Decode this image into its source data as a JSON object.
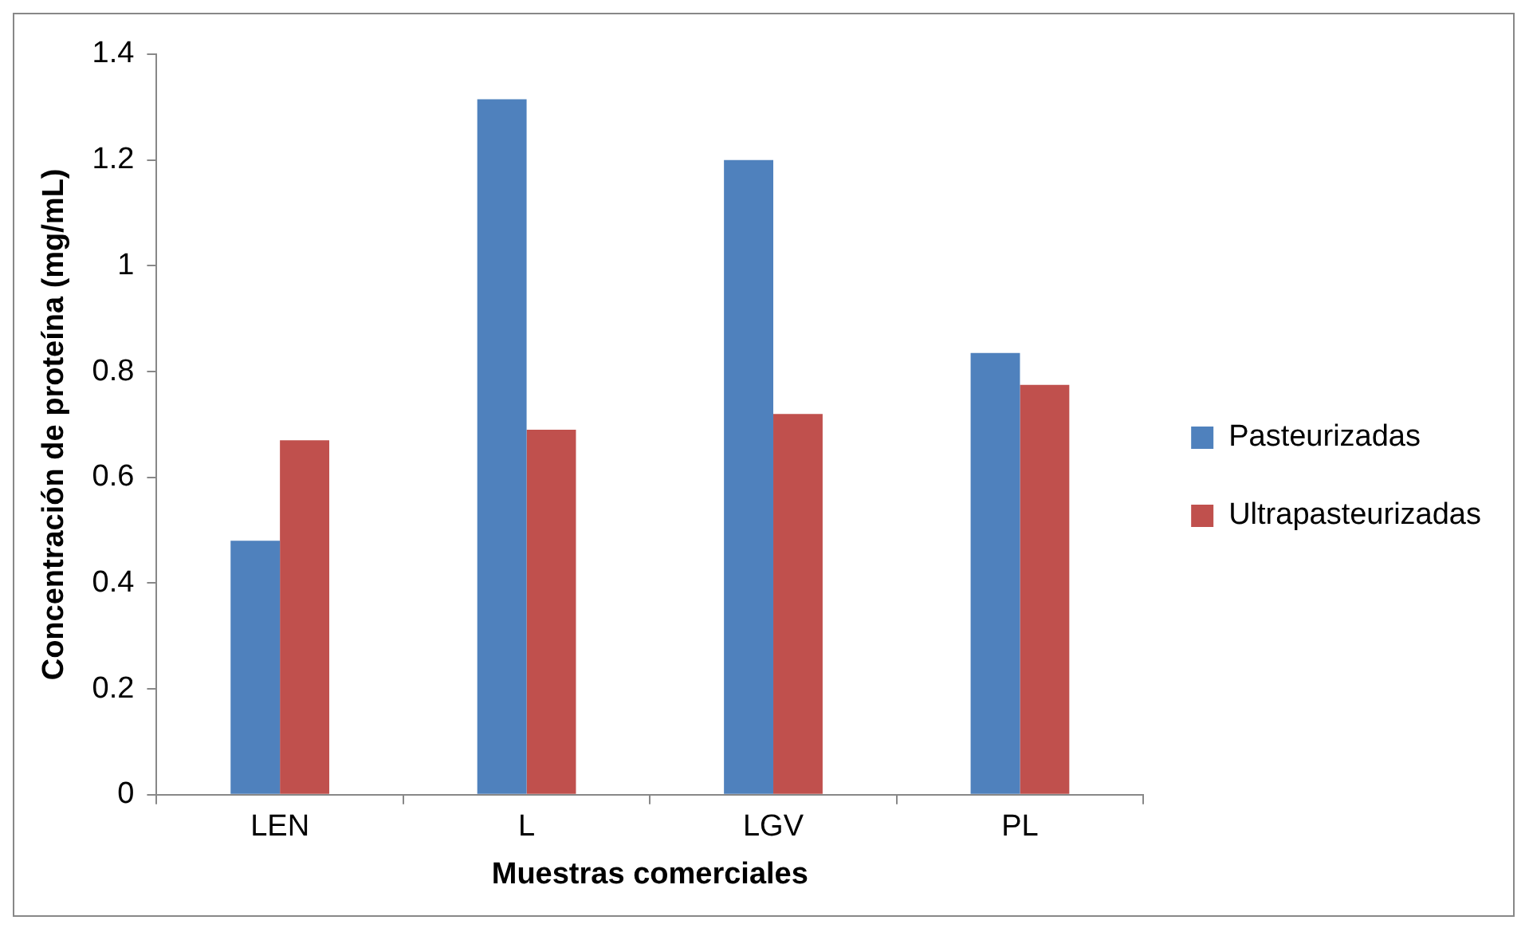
{
  "chart_data": {
    "type": "bar",
    "xlabel": "Muestras comerciales",
    "ylabel": "Concentración de proteína (mg/mL)",
    "categories": [
      "LEN",
      "L",
      "LGV",
      "PL"
    ],
    "series": [
      {
        "name": "Pasteurizadas",
        "color": "#4f81bd",
        "values": [
          0.48,
          1.315,
          1.2,
          0.835
        ]
      },
      {
        "name": "Ultrapasteurizadas",
        "color": "#c0504d",
        "values": [
          0.67,
          0.69,
          0.72,
          0.775
        ]
      }
    ],
    "ylim": [
      0,
      1.4
    ],
    "yticks": [
      0,
      0.2,
      0.4,
      0.6,
      0.8,
      1,
      1.2,
      1.4
    ],
    "grid": false,
    "legend": "right"
  }
}
